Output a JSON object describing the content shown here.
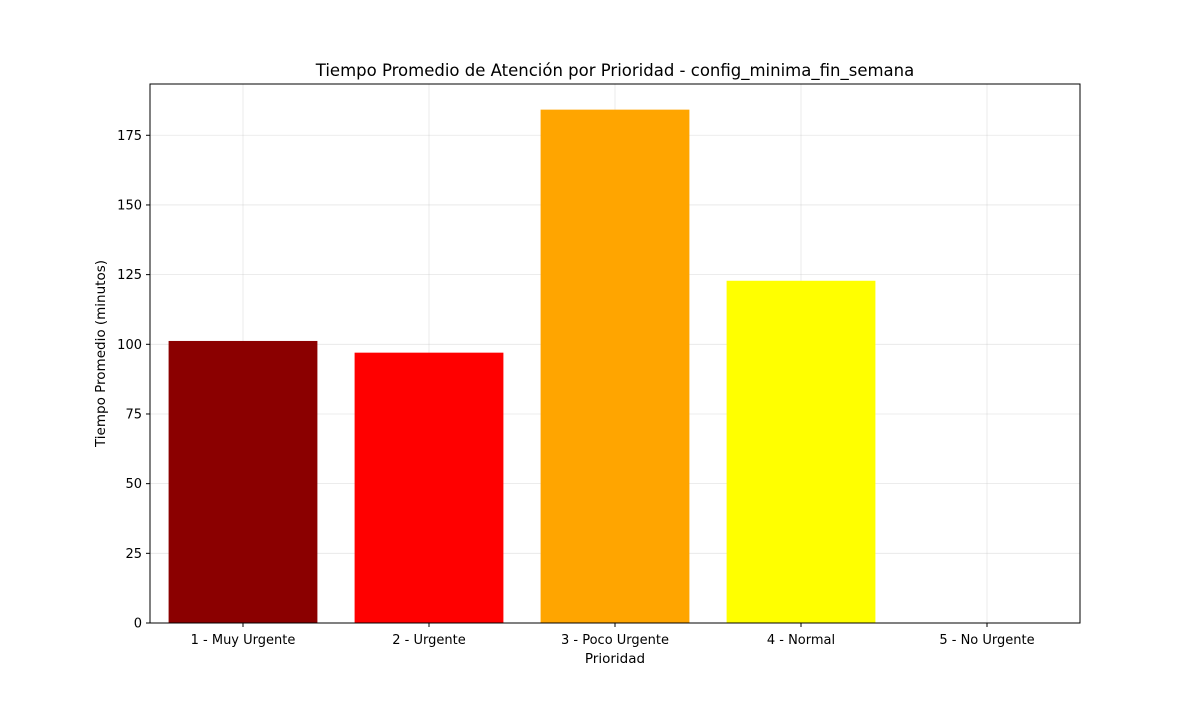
{
  "chart_data": {
    "type": "bar",
    "title": "Tiempo Promedio de Atención por Prioridad - config_minima_fin_semana",
    "xlabel": "Prioridad",
    "ylabel": "Tiempo Promedio (minutos)",
    "categories": [
      "1 - Muy Urgente",
      "2 - Urgente",
      "3 - Poco Urgente",
      "4 - Normal",
      "5 - No Urgente"
    ],
    "values": [
      101.2,
      97.0,
      184.2,
      122.8,
      0
    ],
    "colors": [
      "#8b0000",
      "#ff0000",
      "#ffa500",
      "#ffff00",
      "#008000"
    ],
    "yticks": [
      0,
      25,
      50,
      75,
      100,
      125,
      150,
      175
    ],
    "ylim": [
      0,
      193.4
    ],
    "grid": true,
    "legend": false
  }
}
